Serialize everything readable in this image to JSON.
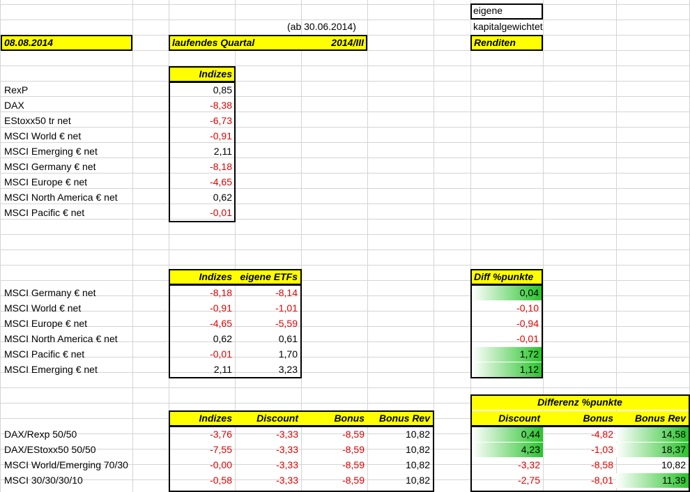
{
  "top": {
    "eigene": "eigene",
    "kapitalgewichtet": "kapitalgewichtet",
    "ab_datum": "(ab 30.06.2014)",
    "date": "08.08.2014",
    "laufendes": "laufendes Quartal",
    "quartal": "2014/III",
    "renditen": "Renditen"
  },
  "section1": {
    "header": "Indizes",
    "rows": [
      {
        "name": "RexP",
        "value": "0,85"
      },
      {
        "name": "DAX",
        "value": "-8,38"
      },
      {
        "name": "EStoxx50 tr net",
        "value": "-6,73"
      },
      {
        "name": "MSCI World € net",
        "value": "-0,91"
      },
      {
        "name": "MSCI Emerging € net",
        "value": "2,11"
      },
      {
        "name": "MSCI Germany € net",
        "value": "-8,18"
      },
      {
        "name": "MSCI Europe € net",
        "value": "-4,65"
      },
      {
        "name": "MSCI North America € net",
        "value": "0,62"
      },
      {
        "name": "MSCI Pacific € net",
        "value": "-0,01"
      }
    ]
  },
  "section2": {
    "header_indizes": "Indizes",
    "header_etfs": "eigene ETFs",
    "header_diff": "Diff %punkte",
    "rows": [
      {
        "name": "MSCI Germany € net",
        "indizes": "-8,18",
        "etfs": "-8,14",
        "diff": "0,04"
      },
      {
        "name": "MSCI World € net",
        "indizes": "-0,91",
        "etfs": "-1,01",
        "diff": "-0,10"
      },
      {
        "name": "MSCI Europe € net",
        "indizes": "-4,65",
        "etfs": "-5,59",
        "diff": "-0,94"
      },
      {
        "name": "MSCI North America € net",
        "indizes": "0,62",
        "etfs": "0,61",
        "diff": "-0,01"
      },
      {
        "name": "MSCI Pacific € net",
        "indizes": "-0,01",
        "etfs": "1,70",
        "diff": "1,72"
      },
      {
        "name": "MSCI Emerging € net",
        "indizes": "2,11",
        "etfs": "3,23",
        "diff": "1,12"
      }
    ]
  },
  "section3": {
    "headers": {
      "indizes": "Indizes",
      "discount": "Discount",
      "bonus": "Bonus",
      "bonus_rev": "Bonus Rev"
    },
    "diff_title": "Differenz %punkte",
    "diff_headers": {
      "discount": "Discount",
      "bonus": "Bonus",
      "bonus_rev": "Bonus Rev"
    },
    "rows": [
      {
        "name": "DAX/Rexp 50/50",
        "indizes": "-3,76",
        "discount": "-3,33",
        "bonus": "-8,59",
        "bonus_rev": "10,82",
        "d_discount": "0,44",
        "d_bonus": "-4,82",
        "d_bonus_rev": "14,58"
      },
      {
        "name": "DAX/EStoxx50 50/50",
        "indizes": "-7,55",
        "discount": "-3,33",
        "bonus": "-8,59",
        "bonus_rev": "10,82",
        "d_discount": "4,23",
        "d_bonus": "-1,03",
        "d_bonus_rev": "18,37"
      },
      {
        "name": "MSCI World/Emerging 70/30",
        "indizes": "-0,00",
        "discount": "-3,33",
        "bonus": "-8,59",
        "bonus_rev": "10,82",
        "d_discount": "-3,32",
        "d_bonus": "-8,58",
        "d_bonus_rev": "10,82"
      },
      {
        "name": "MSCI 30/30/30/10",
        "indizes": "-0,58",
        "discount": "-3,33",
        "bonus": "-8,59",
        "bonus_rev": "10,82",
        "d_discount": "-2,75",
        "d_bonus": "-8,01",
        "d_bonus_rev": "11,39"
      }
    ]
  },
  "colors": {
    "header_fill": "#ffff00",
    "negative": "#e00000",
    "positive_fill": "#29c42b"
  }
}
